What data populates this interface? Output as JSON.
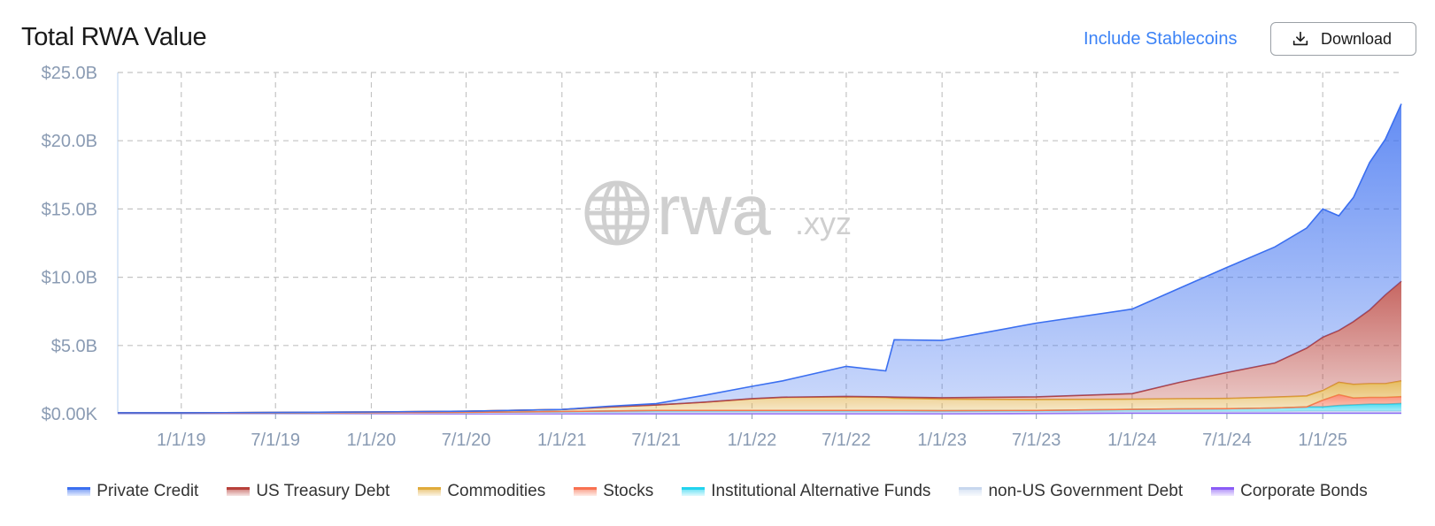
{
  "header": {
    "title": "Total RWA Value",
    "toggle_label": "Include Stablecoins",
    "download_label": "Download"
  },
  "watermark": {
    "brand": "rwa",
    "suffix": ".xyz"
  },
  "chart_data": {
    "type": "area",
    "stacked": true,
    "xlabel": "",
    "ylabel": "",
    "y_unit": "USD",
    "ylim": [
      0,
      25000000000
    ],
    "y_ticks": [
      0,
      5000000000,
      10000000000,
      15000000000,
      20000000000,
      25000000000
    ],
    "y_tick_labels": [
      "$0.00K",
      "$5.0B",
      "$10.0B",
      "$15.0B",
      "$20.0B",
      "$25.0B"
    ],
    "xlim": [
      "2018-09-01",
      "2025-06-01"
    ],
    "x_ticks": [
      "2019-01-01",
      "2019-07-01",
      "2020-01-01",
      "2020-07-01",
      "2021-01-01",
      "2021-07-01",
      "2022-01-01",
      "2022-07-01",
      "2023-01-01",
      "2023-07-01",
      "2024-01-01",
      "2024-07-01",
      "2025-01-01"
    ],
    "x_tick_labels": [
      "1/1/19",
      "7/1/19",
      "1/1/20",
      "7/1/20",
      "1/1/21",
      "7/1/21",
      "1/1/22",
      "7/1/22",
      "1/1/23",
      "7/1/23",
      "1/1/24",
      "7/1/24",
      "1/1/25"
    ],
    "grid": true,
    "legend_position": "bottom",
    "x": [
      "2018-09-01",
      "2019-01-01",
      "2019-07-01",
      "2020-01-01",
      "2020-07-01",
      "2021-01-01",
      "2021-04-01",
      "2021-07-01",
      "2021-10-01",
      "2022-01-01",
      "2022-03-01",
      "2022-07-01",
      "2022-09-15",
      "2022-10-01",
      "2023-01-01",
      "2023-07-01",
      "2024-01-01",
      "2024-04-01",
      "2024-07-01",
      "2024-10-01",
      "2024-12-01",
      "2025-01-01",
      "2025-02-01",
      "2025-03-01",
      "2025-04-01",
      "2025-05-01",
      "2025-06-01"
    ],
    "series": [
      {
        "name": "Corporate Bonds",
        "color": "#8b5cf6",
        "values": [
          0,
          0,
          0,
          0,
          0,
          0,
          0,
          0,
          0,
          0,
          0,
          0,
          0,
          0,
          0,
          0.02,
          0.05,
          0.05,
          0.05,
          0.05,
          0.05,
          0.05,
          0.05,
          0.05,
          0.05,
          0.05,
          0.05
        ]
      },
      {
        "name": "non-US Government Debt",
        "color": "#c7d7ee",
        "values": [
          0.02,
          0.02,
          0.02,
          0.03,
          0.05,
          0.08,
          0.1,
          0.12,
          0.12,
          0.12,
          0.12,
          0.12,
          0.12,
          0.12,
          0.12,
          0.12,
          0.12,
          0.12,
          0.12,
          0.12,
          0.15,
          0.15,
          0.15,
          0.15,
          0.15,
          0.15,
          0.15
        ]
      },
      {
        "name": "Institutional Alternative Funds",
        "color": "#22d3ee",
        "values": [
          0.03,
          0.03,
          0.04,
          0.05,
          0.05,
          0.08,
          0.1,
          0.12,
          0.12,
          0.12,
          0.12,
          0.12,
          0.12,
          0.12,
          0.1,
          0.1,
          0.15,
          0.18,
          0.2,
          0.25,
          0.3,
          0.3,
          0.4,
          0.45,
          0.5,
          0.5,
          0.55
        ]
      },
      {
        "name": "Stocks",
        "color": "#f87151",
        "values": [
          0,
          0,
          0,
          0,
          0,
          0,
          0,
          0,
          0,
          0,
          0,
          0,
          0,
          0,
          0,
          0,
          0,
          0,
          0,
          0,
          0,
          0.5,
          0.8,
          0.5,
          0.5,
          0.5,
          0.5
        ]
      },
      {
        "name": "Commodities",
        "color": "#e0ab3a",
        "values": [
          0.02,
          0.02,
          0.03,
          0.05,
          0.08,
          0.15,
          0.3,
          0.4,
          0.6,
          0.85,
          0.95,
          1.0,
          0.95,
          0.9,
          0.85,
          0.8,
          0.75,
          0.75,
          0.75,
          0.8,
          0.8,
          0.7,
          0.9,
          1.0,
          1.0,
          1.0,
          1.15
        ]
      },
      {
        "name": "US Treasury Debt",
        "color": "#b8403a",
        "values": [
          0,
          0,
          0,
          0,
          0,
          0,
          0,
          0,
          0.01,
          0.02,
          0.02,
          0.03,
          0.05,
          0.08,
          0.1,
          0.2,
          0.4,
          1.2,
          1.9,
          2.5,
          3.5,
          3.9,
          3.8,
          4.6,
          5.4,
          6.5,
          7.3
        ]
      },
      {
        "name": "Private Credit",
        "color": "#3b6ff0",
        "values": [
          0,
          0,
          0,
          0,
          0,
          0,
          0.05,
          0.1,
          0.5,
          0.9,
          1.2,
          2.2,
          1.9,
          4.2,
          4.2,
          5.4,
          6.2,
          6.9,
          7.7,
          8.5,
          8.8,
          9.4,
          8.4,
          9.1,
          10.8,
          11.4,
          13.0
        ]
      }
    ],
    "legend_order": [
      "Private Credit",
      "US Treasury Debt",
      "Commodities",
      "Stocks",
      "Institutional Alternative Funds",
      "non-US Government Debt",
      "Corporate Bonds"
    ],
    "values_scale": "billions"
  }
}
